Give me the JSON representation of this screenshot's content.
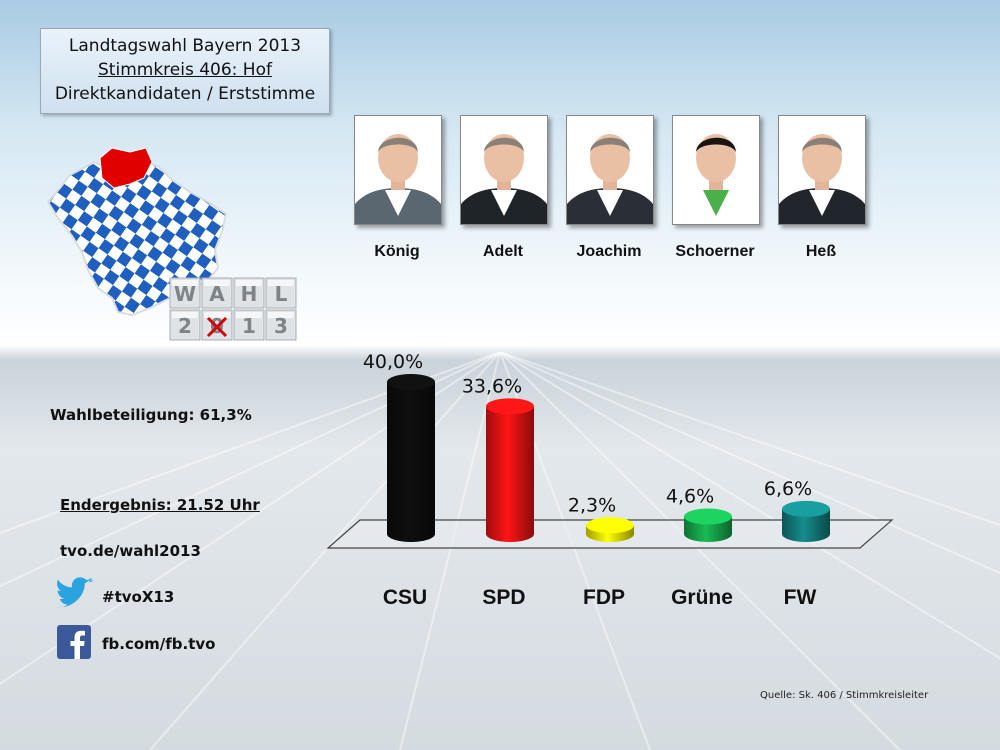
{
  "title": {
    "line1": "Landtagswahl Bayern 2013",
    "line2": "Stimmkreis 406: Hof",
    "line3": "Direktkandidaten / Erststimme"
  },
  "logo": {
    "row1": [
      "W",
      "A",
      "H",
      "L"
    ],
    "row2": [
      "2",
      "0",
      "1",
      "3"
    ]
  },
  "candidates": [
    {
      "name": "König",
      "shirt": "#ffffff",
      "jacket": "#5a6670"
    },
    {
      "name": "Adelt",
      "shirt": "#ffffff",
      "jacket": "#1e2428"
    },
    {
      "name": "Joachim",
      "shirt": "#ffffff",
      "jacket": "#2a2e36"
    },
    {
      "name": "Schoerner",
      "shirt": "#4ab04a",
      "jacket": "#ffffff"
    },
    {
      "name": "Heß",
      "shirt": "#ffffff",
      "jacket": "#20262c"
    }
  ],
  "info": {
    "turnout": "Wahlbeteiligung: 61,3%",
    "final": "Endergebnis: 21.52 Uhr",
    "website": "tvo.de/wahl2013",
    "twitter": "#tvoX13",
    "facebook": "fb.com/fb.tvo"
  },
  "icons": {
    "twitter": "twitter-bird-icon",
    "facebook": "facebook-f-icon"
  },
  "source": "Quelle: Sk. 406 / Stimmkreisleiter",
  "chart_data": {
    "type": "bar",
    "categories": [
      "CSU",
      "SPD",
      "FDP",
      "Grüne",
      "FW"
    ],
    "values": [
      40.0,
      33.6,
      2.3,
      4.6,
      6.6
    ],
    "labels": [
      "40,0%",
      "33,6%",
      "2,3%",
      "4,6%",
      "6,6%"
    ],
    "colors": [
      "#0d0d0d",
      "#e61212",
      "#e6e000",
      "#16a34a",
      "#137a7a"
    ],
    "unit": "%",
    "ylim": [
      0,
      40
    ],
    "grid": false,
    "legend": "none"
  }
}
